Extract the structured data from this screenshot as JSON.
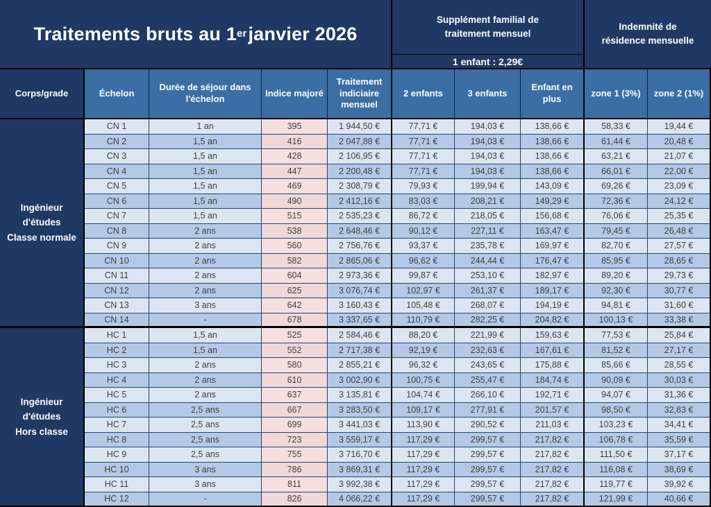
{
  "header": {
    "title_prefix": "Traitements bruts au 1",
    "title_sup": "er",
    "title_suffix": " janvier 2026",
    "supplement_title": "Supplément familial de traitement mensuel",
    "supplement_subtitle": "1 enfant : 2,29€",
    "indemnity_title": "Indemnité de résidence mensuelle"
  },
  "columns": {
    "corps": "Corps/grade",
    "echelon": "Échelon",
    "duree": "Durée de séjour dans l'échelon",
    "indice": "Indice majoré",
    "traitement": "Traitement indiciaire mensuel",
    "enfants2": "2 enfants",
    "enfants3": "3 enfants",
    "enfant_plus": "Enfant en plus",
    "zone1": "zone 1 (3%)",
    "zone2": "zone 2 (1%)"
  },
  "colors": {
    "navy": "#1F3864",
    "header_blue": "#3A6EA5",
    "row_light": "#DCE6F2",
    "row_dark": "#B4C9E6",
    "indice_pink_light": "#F5E0DF",
    "indice_pink_dark": "#EFD8D7"
  },
  "sections": [
    {
      "grade": "Ingénieur\nd'études\nClasse normale",
      "rows": [
        [
          "CN 1",
          "1 an",
          "395",
          "1 944,50 €",
          "77,71 €",
          "194,03 €",
          "138,66 €",
          "58,33 €",
          "19,44 €"
        ],
        [
          "CN 2",
          "1,5 an",
          "416",
          "2 047,88 €",
          "77,71 €",
          "194,03 €",
          "138,66 €",
          "61,44 €",
          "20,48 €"
        ],
        [
          "CN 3",
          "1,5 an",
          "428",
          "2 106,95 €",
          "77,71 €",
          "194,03 €",
          "138,66 €",
          "63,21 €",
          "21,07 €"
        ],
        [
          "CN 4",
          "1,5 an",
          "447",
          "2 200,48 €",
          "77,71 €",
          "194,03 €",
          "138,66 €",
          "66,01 €",
          "22,00 €"
        ],
        [
          "CN 5",
          "1,5 an",
          "469",
          "2 308,79 €",
          "79,93 €",
          "199,94 €",
          "143,09 €",
          "69,26 €",
          "23,09 €"
        ],
        [
          "CN 6",
          "1,5 an",
          "490",
          "2 412,16 €",
          "83,03 €",
          "208,21 €",
          "149,29 €",
          "72,36 €",
          "24,12 €"
        ],
        [
          "CN 7",
          "1,5 an",
          "515",
          "2 535,23 €",
          "86,72 €",
          "218,05 €",
          "156,68 €",
          "76,06 €",
          "25,35 €"
        ],
        [
          "CN 8",
          "2 ans",
          "538",
          "2 648,46 €",
          "90,12 €",
          "227,11 €",
          "163,47 €",
          "79,45 €",
          "26,48 €"
        ],
        [
          "CN 9",
          "2 ans",
          "560",
          "2 756,76 €",
          "93,37 €",
          "235,78 €",
          "169,97 €",
          "82,70 €",
          "27,57 €"
        ],
        [
          "CN 10",
          "2 ans",
          "582",
          "2 865,06 €",
          "96,62 €",
          "244,44 €",
          "176,47 €",
          "85,95 €",
          "28,65 €"
        ],
        [
          "CN 11",
          "2 ans",
          "604",
          "2 973,36 €",
          "99,87 €",
          "253,10 €",
          "182,97 €",
          "89,20 €",
          "29,73 €"
        ],
        [
          "CN 12",
          "2 ans",
          "625",
          "3 076,74 €",
          "102,97 €",
          "261,37 €",
          "189,17 €",
          "92,30 €",
          "30,77 €"
        ],
        [
          "CN 13",
          "3 ans",
          "642",
          "3 160,43 €",
          "105,48 €",
          "268,07 €",
          "194,19 €",
          "94,81 €",
          "31,60 €"
        ],
        [
          "CN 14",
          "-",
          "678",
          "3 337,65 €",
          "110,79 €",
          "282,25 €",
          "204,82 €",
          "100,13 €",
          "33,38 €"
        ]
      ]
    },
    {
      "grade": "Ingénieur\nd'études\nHors classe",
      "rows": [
        [
          "HC 1",
          "1,5 an",
          "525",
          "2 584,46 €",
          "88,20 €",
          "221,99 €",
          "159,63 €",
          "77,53 €",
          "25,84 €"
        ],
        [
          "HC 2",
          "1,5 an",
          "552",
          "2 717,38 €",
          "92,19 €",
          "232,63 €",
          "167,61 €",
          "81,52 €",
          "27,17 €"
        ],
        [
          "HC 3",
          "2 ans",
          "580",
          "2 855,21 €",
          "96,32 €",
          "243,65 €",
          "175,88 €",
          "85,66 €",
          "28,55 €"
        ],
        [
          "HC 4",
          "2 ans",
          "610",
          "3 002,90 €",
          "100,75 €",
          "255,47 €",
          "184,74 €",
          "90,09 €",
          "30,03 €"
        ],
        [
          "HC 5",
          "2 ans",
          "637",
          "3 135,81 €",
          "104,74 €",
          "266,10 €",
          "192,71 €",
          "94,07 €",
          "31,36 €"
        ],
        [
          "HC 6",
          "2,5 ans",
          "667",
          "3 283,50 €",
          "109,17 €",
          "277,91 €",
          "201,57 €",
          "98,50 €",
          "32,83 €"
        ],
        [
          "HC 7",
          "2,5 ans",
          "699",
          "3 441,03 €",
          "113,90 €",
          "290,52 €",
          "211,03 €",
          "103,23 €",
          "34,41 €"
        ],
        [
          "HC 8",
          "2,5 ans",
          "723",
          "3 559,17 €",
          "117,29 €",
          "299,57 €",
          "217,82 €",
          "106,78 €",
          "35,59 €"
        ],
        [
          "HC 9",
          "2,5 ans",
          "755",
          "3 716,70 €",
          "117,29 €",
          "299,57 €",
          "217,82 €",
          "111,50 €",
          "37,17 €"
        ],
        [
          "HC 10",
          "3 ans",
          "786",
          "3 869,31 €",
          "117,29 €",
          "299,57 €",
          "217,82 €",
          "116,08 €",
          "38,69 €"
        ],
        [
          "HC 11",
          "3 ans",
          "811",
          "3 992,38 €",
          "117,29 €",
          "299,57 €",
          "217,82 €",
          "119,77 €",
          "39,92 €"
        ],
        [
          "HC 12",
          "-",
          "826",
          "4 066,22 €",
          "117,29 €",
          "299,57 €",
          "217,82 €",
          "121,99 €",
          "40,66 €"
        ]
      ]
    }
  ]
}
